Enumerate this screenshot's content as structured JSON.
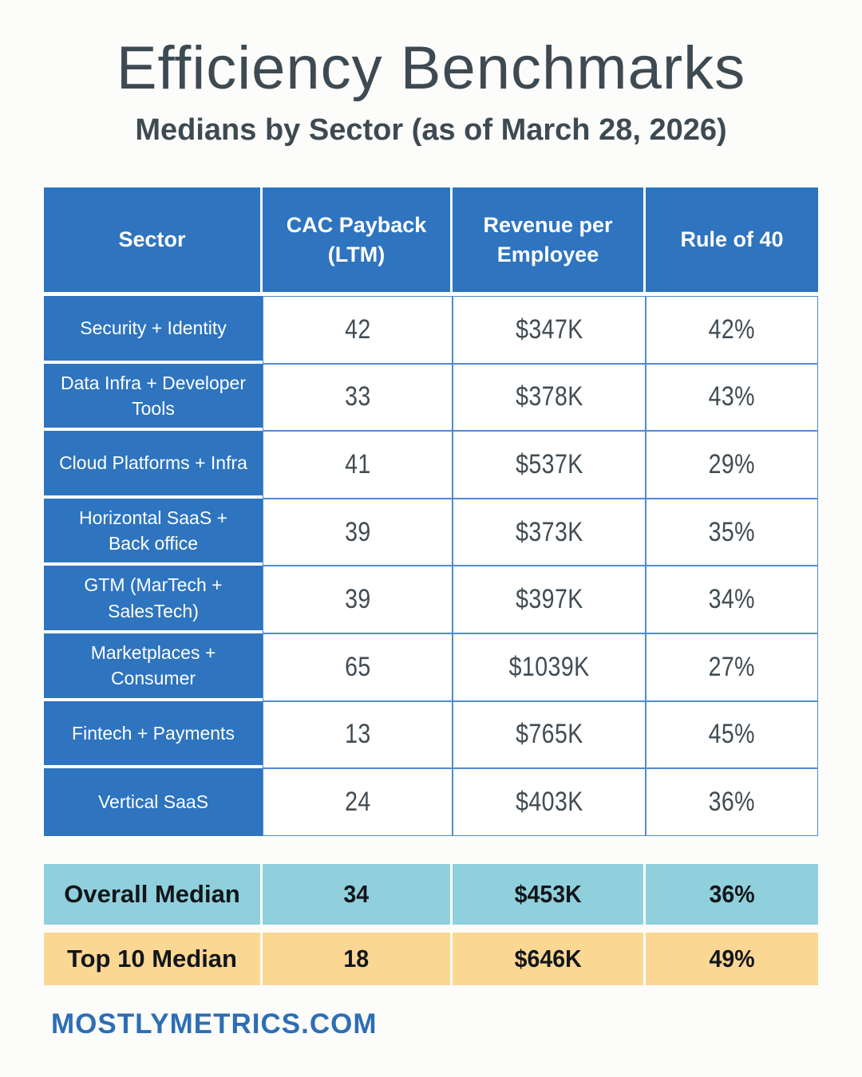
{
  "header": {
    "title": "Efficiency Benchmarks",
    "subtitle": "Medians by Sector (as of March 28, 2026)"
  },
  "table": {
    "columns": [
      "Sector",
      "CAC Payback (LTM)",
      "Revenue per Employee",
      "Rule of 40"
    ],
    "rows": [
      {
        "sector": "Security + Identity",
        "cac": "42",
        "rpe": "$347K",
        "rule40": "42%"
      },
      {
        "sector": "Data Infra + Developer Tools",
        "cac": "33",
        "rpe": "$378K",
        "rule40": "43%"
      },
      {
        "sector": "Cloud Platforms + Infra",
        "cac": "41",
        "rpe": "$537K",
        "rule40": "29%"
      },
      {
        "sector": "Horizontal SaaS + Back office",
        "cac": "39",
        "rpe": "$373K",
        "rule40": "35%"
      },
      {
        "sector": "GTM (MarTech + SalesTech)",
        "cac": "39",
        "rpe": "$397K",
        "rule40": "34%"
      },
      {
        "sector": "Marketplaces + Consumer",
        "cac": "65",
        "rpe": "$1039K",
        "rule40": "27%"
      },
      {
        "sector": "Fintech + Payments",
        "cac": "13",
        "rpe": "$765K",
        "rule40": "45%"
      },
      {
        "sector": "Vertical SaaS",
        "cac": "24",
        "rpe": "$403K",
        "rule40": "36%"
      }
    ]
  },
  "summary": {
    "overall": {
      "label": "Overall Median",
      "cac": "34",
      "rpe": "$453K",
      "rule40": "36%"
    },
    "top10": {
      "label": "Top 10 Median",
      "cac": "18",
      "rpe": "$646K",
      "rule40": "49%"
    }
  },
  "footer": {
    "site": "MOSTLYMETRICS.COM"
  },
  "colors": {
    "blue": "#2E74BF",
    "grid-line": "#4F8BD1",
    "teal": "#8FD0DC",
    "peach": "#FBD794",
    "ink": "#3E4A52",
    "value-ink": "#414C53",
    "summary-ink": "#121619",
    "footer-blue": "#2D6EB5",
    "bg": "#FCFDFB"
  },
  "chart_data": {
    "type": "table",
    "title": "Efficiency Benchmarks",
    "subtitle": "Medians by Sector (as of March 28, 2026)",
    "columns": [
      "Sector",
      "CAC Payback (LTM)",
      "Revenue per Employee",
      "Rule of 40"
    ],
    "categories": [
      "Security + Identity",
      "Data Infra + Developer Tools",
      "Cloud Platforms + Infra",
      "Horizontal SaaS + Back office",
      "GTM (MarTech + SalesTech)",
      "Marketplaces + Consumer",
      "Fintech + Payments",
      "Vertical SaaS"
    ],
    "series": [
      {
        "name": "CAC Payback (LTM)",
        "values": [
          42,
          33,
          41,
          39,
          39,
          65,
          13,
          24
        ]
      },
      {
        "name": "Revenue per Employee ($K)",
        "values": [
          347,
          378,
          537,
          373,
          397,
          1039,
          765,
          403
        ]
      },
      {
        "name": "Rule of 40 (%)",
        "values": [
          42,
          43,
          29,
          35,
          34,
          27,
          45,
          36
        ]
      }
    ],
    "summary_rows": [
      {
        "label": "Overall Median",
        "cac_payback": 34,
        "revenue_per_employee_k": 453,
        "rule_of_40_pct": 36
      },
      {
        "label": "Top 10 Median",
        "cac_payback": 18,
        "revenue_per_employee_k": 646,
        "rule_of_40_pct": 49
      }
    ]
  }
}
